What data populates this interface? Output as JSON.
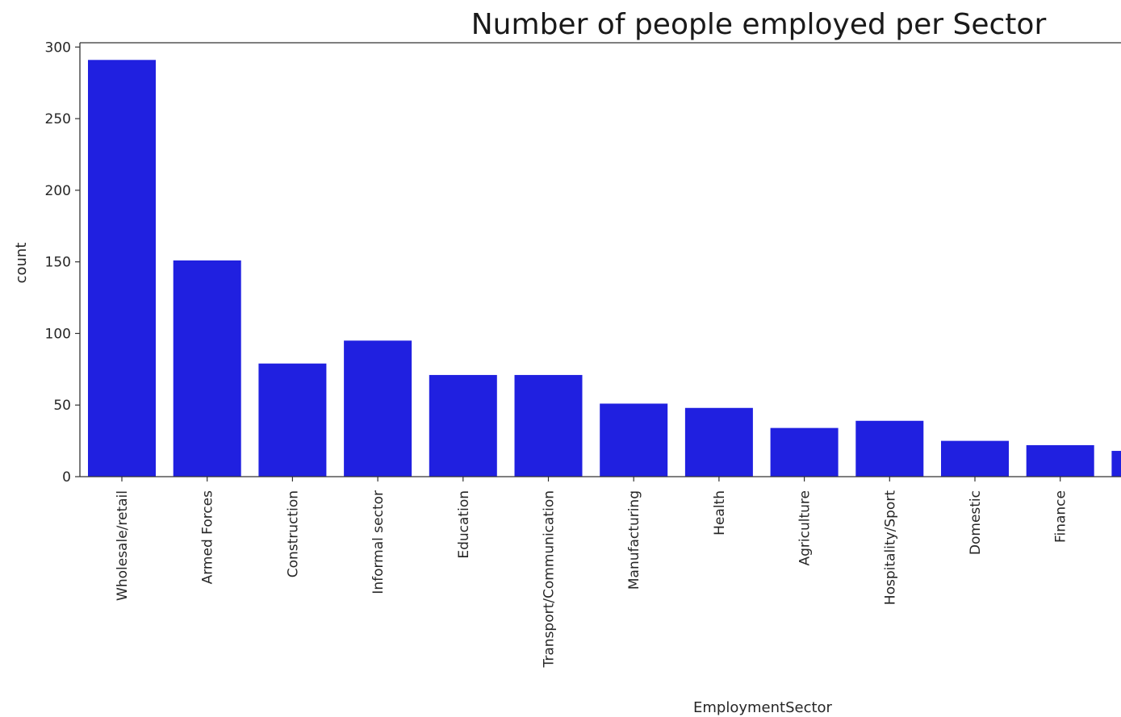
{
  "chart_data": {
    "type": "bar",
    "title": "Number of people employed per Sector",
    "xlabel": "EmploymentSector",
    "ylabel": "count",
    "categories": [
      "Wholesale/retail",
      "Armed Forces",
      "Construction",
      "Informal sector",
      "Education",
      "Transport/Communication",
      "Manufacturing",
      "Health",
      "Agriculture",
      "Hospitality/Sport",
      "Domestic",
      "Finance",
      ""
    ],
    "values": [
      291,
      151,
      79,
      95,
      71,
      71,
      51,
      48,
      34,
      39,
      25,
      22,
      18
    ],
    "ylim": [
      0,
      303
    ],
    "yticks": [
      0,
      50,
      100,
      150,
      200,
      250,
      300
    ],
    "bar_color": "#2020e0",
    "grid": false,
    "legend": "none"
  }
}
